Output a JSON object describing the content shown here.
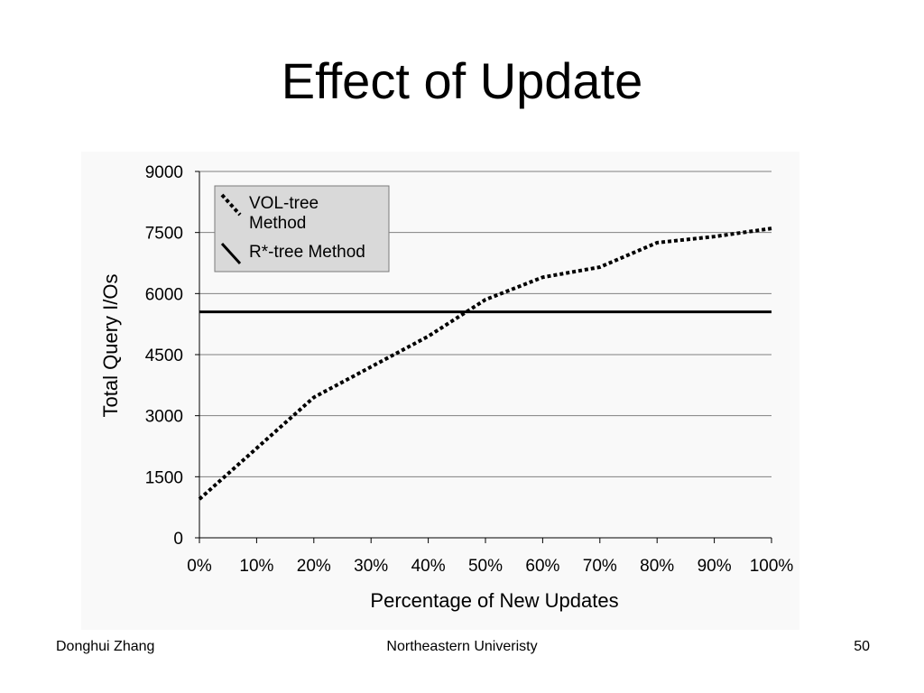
{
  "slide": {
    "title": "Effect of Update"
  },
  "footer": {
    "author": "Donghui Zhang",
    "institution": "Northeastern Univeristy",
    "page_number": "50"
  },
  "chart_data": {
    "type": "line",
    "xlabel": "Percentage of New Updates",
    "ylabel": "Total Query I/Os",
    "x": [
      0,
      10,
      20,
      30,
      40,
      50,
      60,
      70,
      80,
      90,
      100
    ],
    "x_tick_labels": [
      "0%",
      "10%",
      "20%",
      "30%",
      "40%",
      "50%",
      "60%",
      "70%",
      "80%",
      "90%",
      "100%"
    ],
    "y_ticks": [
      0,
      1500,
      3000,
      4500,
      6000,
      7500,
      9000
    ],
    "ylim": [
      0,
      9000
    ],
    "grid": "horizontal",
    "legend_position": "top-left",
    "series": [
      {
        "name": "VOL-tree Method",
        "name_lines": [
          "VOL-tree",
          "Method"
        ],
        "style": "dotted",
        "values": [
          950,
          2200,
          3450,
          4200,
          4950,
          5850,
          6400,
          6650,
          7250,
          7400,
          7600
        ]
      },
      {
        "name": "R*-tree Method",
        "name_lines": [
          "R*-tree Method"
        ],
        "style": "solid",
        "values": [
          5550,
          5550,
          5550,
          5550,
          5550,
          5550,
          5550,
          5550,
          5550,
          5550,
          5550
        ]
      }
    ],
    "colors": {
      "line": "#000000",
      "grid": "#808080",
      "panel_background": "#f9f9f9",
      "legend_background": "#d9d9d9"
    }
  }
}
